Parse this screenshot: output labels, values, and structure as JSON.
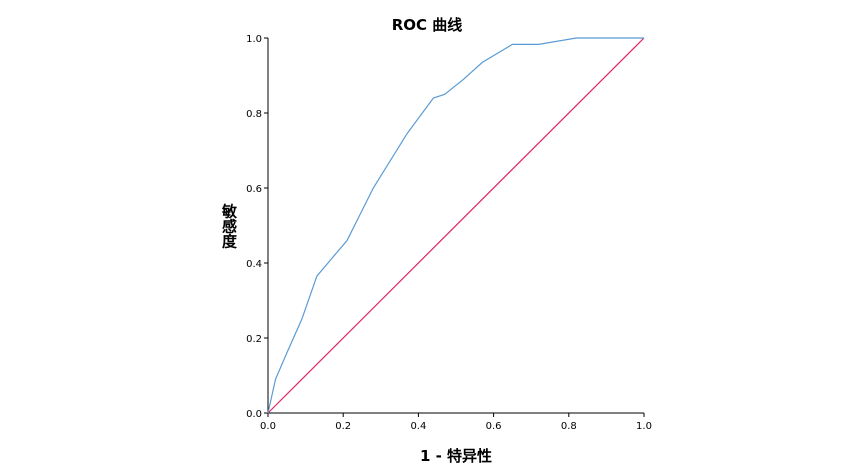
{
  "chart_data": {
    "type": "line",
    "title": "ROC 曲线",
    "xlabel": "1 - 特异性",
    "ylabel": "敏感度",
    "xlim": [
      0,
      1
    ],
    "ylim": [
      0,
      1
    ],
    "x_ticks": [
      "0.0",
      "0.2",
      "0.4",
      "0.6",
      "0.8",
      "1.0"
    ],
    "y_ticks": [
      "0.0",
      "0.2",
      "0.4",
      "0.6",
      "0.8",
      "1.0"
    ],
    "grid": false,
    "colors": {
      "roc_curve": "#5b9bd5",
      "reference_line": "#e0245e"
    },
    "series": [
      {
        "x": [
          0.0,
          0.02,
          0.05,
          0.09,
          0.13,
          0.21,
          0.28,
          0.37,
          0.44,
          0.47,
          0.52,
          0.57,
          0.65,
          0.72,
          0.82,
          1.0
        ],
        "y": [
          0.0,
          0.09,
          0.16,
          0.25,
          0.365,
          0.46,
          0.6,
          0.745,
          0.84,
          0.85,
          0.89,
          0.935,
          0.983,
          0.983,
          1.0,
          1.0
        ]
      },
      {
        "x": [
          0.0,
          1.0
        ],
        "y": [
          0.0,
          1.0
        ]
      }
    ]
  }
}
